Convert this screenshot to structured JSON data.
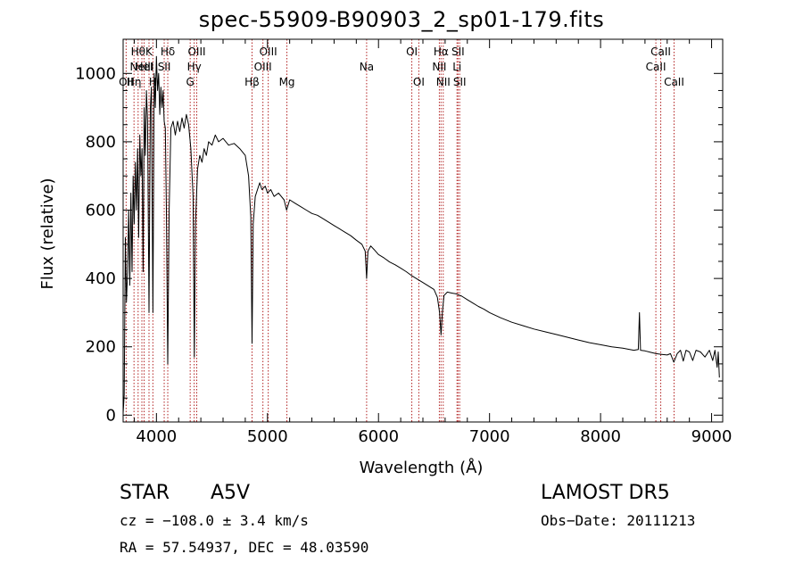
{
  "chart_data": {
    "type": "line",
    "title": "spec-55909-B90903_2_sp01-179.fits",
    "xlabel": "Wavelength (Å)",
    "ylabel": "Flux (relative)",
    "xlim": [
      3700,
      9100
    ],
    "ylim": [
      -20,
      1100
    ],
    "x_ticks": [
      4000,
      5000,
      6000,
      7000,
      8000,
      9000
    ],
    "y_ticks": [
      0,
      200,
      400,
      600,
      800,
      1000
    ],
    "grid": false,
    "series": [
      {
        "line_color": "#000000",
        "points": [
          [
            3700,
            5
          ],
          [
            3710,
            60
          ],
          [
            3720,
            520
          ],
          [
            3730,
            330
          ],
          [
            3740,
            420
          ],
          [
            3750,
            600
          ],
          [
            3760,
            380
          ],
          [
            3770,
            650
          ],
          [
            3780,
            420
          ],
          [
            3790,
            700
          ],
          [
            3800,
            560
          ],
          [
            3810,
            740
          ],
          [
            3820,
            600
          ],
          [
            3830,
            780
          ],
          [
            3840,
            520
          ],
          [
            3850,
            820
          ],
          [
            3860,
            700
          ],
          [
            3870,
            780
          ],
          [
            3880,
            420
          ],
          [
            3890,
            900
          ],
          [
            3900,
            760
          ],
          [
            3910,
            950
          ],
          [
            3920,
            860
          ],
          [
            3933,
            300
          ],
          [
            3945,
            900
          ],
          [
            3955,
            960
          ],
          [
            3968,
            300
          ],
          [
            3980,
            1000
          ],
          [
            3990,
            900
          ],
          [
            4000,
            1050
          ],
          [
            4010,
            950
          ],
          [
            4020,
            1000
          ],
          [
            4030,
            880
          ],
          [
            4040,
            960
          ],
          [
            4050,
            900
          ],
          [
            4060,
            950
          ],
          [
            4070,
            860
          ],
          [
            4080,
            840
          ],
          [
            4090,
            600
          ],
          [
            4102,
            150
          ],
          [
            4115,
            600
          ],
          [
            4130,
            840
          ],
          [
            4150,
            860
          ],
          [
            4170,
            820
          ],
          [
            4190,
            860
          ],
          [
            4210,
            830
          ],
          [
            4230,
            870
          ],
          [
            4250,
            840
          ],
          [
            4270,
            880
          ],
          [
            4290,
            850
          ],
          [
            4310,
            780
          ],
          [
            4330,
            640
          ],
          [
            4341,
            170
          ],
          [
            4352,
            560
          ],
          [
            4370,
            720
          ],
          [
            4390,
            760
          ],
          [
            4410,
            740
          ],
          [
            4430,
            780
          ],
          [
            4450,
            760
          ],
          [
            4470,
            800
          ],
          [
            4500,
            790
          ],
          [
            4530,
            820
          ],
          [
            4560,
            800
          ],
          [
            4600,
            810
          ],
          [
            4650,
            790
          ],
          [
            4700,
            795
          ],
          [
            4750,
            780
          ],
          [
            4800,
            760
          ],
          [
            4830,
            700
          ],
          [
            4850,
            580
          ],
          [
            4861,
            210
          ],
          [
            4872,
            560
          ],
          [
            4890,
            640
          ],
          [
            4910,
            660
          ],
          [
            4930,
            680
          ],
          [
            4950,
            660
          ],
          [
            4980,
            670
          ],
          [
            5000,
            650
          ],
          [
            5030,
            660
          ],
          [
            5060,
            640
          ],
          [
            5100,
            650
          ],
          [
            5150,
            630
          ],
          [
            5172,
            600
          ],
          [
            5200,
            630
          ],
          [
            5250,
            620
          ],
          [
            5300,
            610
          ],
          [
            5350,
            600
          ],
          [
            5400,
            590
          ],
          [
            5450,
            585
          ],
          [
            5500,
            575
          ],
          [
            5550,
            565
          ],
          [
            5600,
            555
          ],
          [
            5650,
            545
          ],
          [
            5700,
            535
          ],
          [
            5750,
            525
          ],
          [
            5800,
            512
          ],
          [
            5850,
            500
          ],
          [
            5880,
            480
          ],
          [
            5893,
            400
          ],
          [
            5905,
            480
          ],
          [
            5930,
            495
          ],
          [
            5960,
            485
          ],
          [
            6000,
            470
          ],
          [
            6050,
            460
          ],
          [
            6100,
            448
          ],
          [
            6150,
            440
          ],
          [
            6200,
            430
          ],
          [
            6250,
            420
          ],
          [
            6300,
            408
          ],
          [
            6350,
            398
          ],
          [
            6400,
            388
          ],
          [
            6450,
            378
          ],
          [
            6500,
            368
          ],
          [
            6530,
            345
          ],
          [
            6550,
            300
          ],
          [
            6563,
            235
          ],
          [
            6575,
            300
          ],
          [
            6590,
            350
          ],
          [
            6620,
            360
          ],
          [
            6650,
            358
          ],
          [
            6700,
            355
          ],
          [
            6750,
            348
          ],
          [
            6800,
            338
          ],
          [
            6850,
            328
          ],
          [
            6900,
            318
          ],
          [
            6950,
            310
          ],
          [
            7000,
            300
          ],
          [
            7100,
            285
          ],
          [
            7200,
            272
          ],
          [
            7300,
            262
          ],
          [
            7400,
            252
          ],
          [
            7500,
            244
          ],
          [
            7600,
            236
          ],
          [
            7700,
            228
          ],
          [
            7800,
            220
          ],
          [
            7900,
            212
          ],
          [
            8000,
            206
          ],
          [
            8100,
            200
          ],
          [
            8200,
            196
          ],
          [
            8300,
            190
          ],
          [
            8340,
            192
          ],
          [
            8350,
            300
          ],
          [
            8360,
            190
          ],
          [
            8400,
            188
          ],
          [
            8450,
            184
          ],
          [
            8500,
            180
          ],
          [
            8550,
            178
          ],
          [
            8600,
            176
          ],
          [
            8630,
            180
          ],
          [
            8660,
            155
          ],
          [
            8690,
            180
          ],
          [
            8720,
            190
          ],
          [
            8745,
            158
          ],
          [
            8770,
            190
          ],
          [
            8800,
            185
          ],
          [
            8830,
            160
          ],
          [
            8860,
            190
          ],
          [
            8900,
            185
          ],
          [
            8940,
            170
          ],
          [
            8980,
            190
          ],
          [
            9010,
            160
          ],
          [
            9030,
            190
          ],
          [
            9050,
            140
          ],
          [
            9060,
            185
          ],
          [
            9070,
            110
          ]
        ]
      }
    ],
    "lines": [
      {
        "x": 3727,
        "label": "OII",
        "row": 3
      },
      {
        "x": 3798,
        "label": "Hη",
        "row": 3
      },
      {
        "x": 3835,
        "label": "Hθ",
        "row": 1
      },
      {
        "x": 3869,
        "label": "NeIII",
        "row": 2
      },
      {
        "x": 3889,
        "label": "HeI",
        "row": 2
      },
      {
        "x": 3933,
        "label": "K",
        "row": 1
      },
      {
        "x": 3968,
        "label": "H",
        "row": 3
      },
      {
        "x": 4070,
        "label": "SII",
        "row": 2
      },
      {
        "x": 4102,
        "label": "Hδ",
        "row": 1
      },
      {
        "x": 4304,
        "label": "G",
        "row": 3
      },
      {
        "x": 4340,
        "label": "Hγ",
        "row": 2
      },
      {
        "x": 4363,
        "label": "OIII",
        "row": 1
      },
      {
        "x": 4861,
        "label": "Hβ",
        "row": 3
      },
      {
        "x": 4959,
        "label": "OIII",
        "row": 2
      },
      {
        "x": 5007,
        "label": "OIII",
        "row": 1
      },
      {
        "x": 5175,
        "label": "Mg",
        "row": 3
      },
      {
        "x": 5893,
        "label": "Na",
        "row": 2
      },
      {
        "x": 6300,
        "label": "OI",
        "row": 1
      },
      {
        "x": 6363,
        "label": "OI",
        "row": 3
      },
      {
        "x": 6548,
        "label": "NII",
        "row": 2
      },
      {
        "x": 6563,
        "label": "Hα",
        "row": 1
      },
      {
        "x": 6583,
        "label": "NII",
        "row": 3
      },
      {
        "x": 6707,
        "label": "Li",
        "row": 2
      },
      {
        "x": 6716,
        "label": "SII",
        "row": 1
      },
      {
        "x": 6731,
        "label": "SII",
        "row": 3
      },
      {
        "x": 8498,
        "label": "CaII",
        "row": 2
      },
      {
        "x": 8542,
        "label": "CaII",
        "row": 1
      },
      {
        "x": 8662,
        "label": "CaII",
        "row": 3
      }
    ]
  },
  "info": {
    "class": "STAR",
    "subclass": "A5V",
    "survey": "LAMOST DR5",
    "cz": "cz = −108.0 ± 3.4 km/s",
    "obs_date": "Obs−Date: 20111213",
    "radec": "RA =  57.54937, DEC =  48.03590"
  }
}
